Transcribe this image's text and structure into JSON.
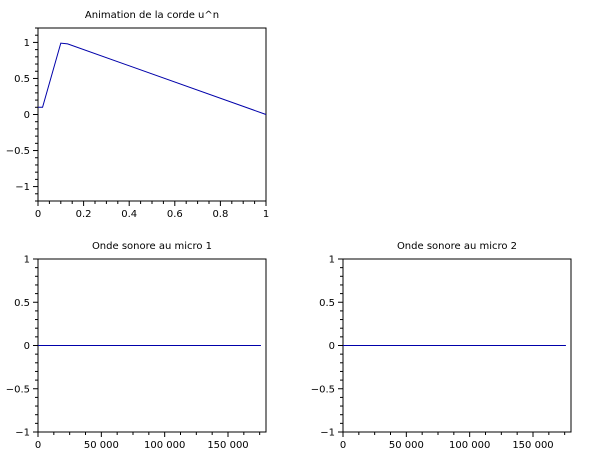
{
  "chart_data": [
    {
      "type": "line",
      "title": "Animation de la corde u^n",
      "xlim": [
        0,
        1
      ],
      "ylim": [
        -1.2,
        1.2
      ],
      "x_ticks": [
        0,
        0.2,
        0.4,
        0.6,
        0.8,
        1
      ],
      "x_tick_labels": [
        "0",
        "0.2",
        "0.4",
        "0.6",
        "0.8",
        "1"
      ],
      "y_ticks": [
        -1,
        -0.5,
        0,
        0.5,
        1
      ],
      "y_tick_labels": [
        "−1",
        "−0.5",
        "0",
        "0.5",
        "1"
      ],
      "grid": false,
      "series": [
        {
          "color": "#0000aa",
          "x": [
            0.0,
            0.02,
            0.1,
            0.13,
            1.0
          ],
          "y": [
            0.1,
            0.1,
            0.99,
            0.98,
            0.0
          ]
        }
      ]
    },
    {
      "type": "line",
      "title": "Onde sonore au micro 1",
      "xlim": [
        0,
        180000
      ],
      "ylim": [
        -1,
        1
      ],
      "x_ticks": [
        0,
        50000,
        100000,
        150000
      ],
      "x_tick_labels": [
        "0",
        "50 000",
        "100 000",
        "150 000"
      ],
      "y_ticks": [
        -1,
        -0.5,
        0,
        0.5,
        1
      ],
      "y_tick_labels": [
        "−1",
        "−0.5",
        "0",
        "0.5",
        "1"
      ],
      "grid": false,
      "series": [
        {
          "color": "#0000aa",
          "x": [
            0,
            176000
          ],
          "y": [
            0,
            0
          ]
        }
      ]
    },
    {
      "type": "line",
      "title": "Onde sonore au micro 2",
      "xlim": [
        0,
        180000
      ],
      "ylim": [
        -1,
        1
      ],
      "x_ticks": [
        0,
        50000,
        100000,
        150000
      ],
      "x_tick_labels": [
        "0",
        "50 000",
        "100 000",
        "150 000"
      ],
      "y_ticks": [
        -1,
        -0.5,
        0,
        0.5,
        1
      ],
      "y_tick_labels": [
        "−1",
        "−0.5",
        "0",
        "0.5",
        "1"
      ],
      "grid": false,
      "series": [
        {
          "color": "#0000aa",
          "x": [
            0,
            176000
          ],
          "y": [
            0,
            0
          ]
        }
      ]
    }
  ]
}
